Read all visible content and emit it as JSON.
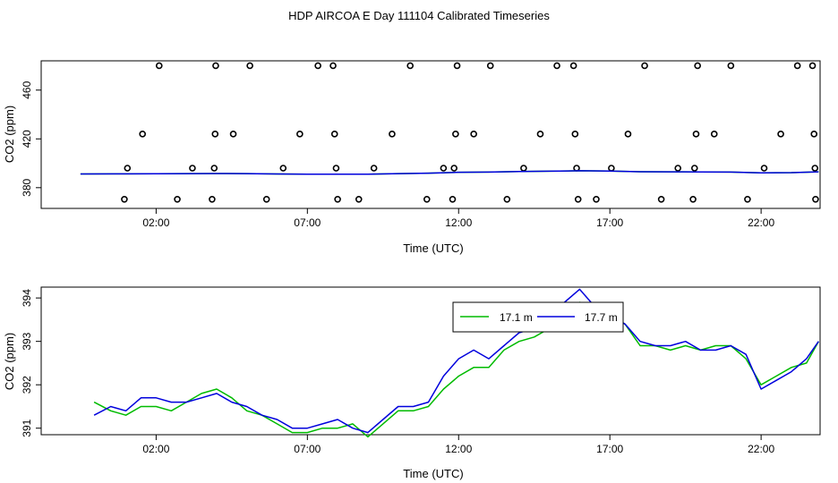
{
  "chart_data": [
    {
      "type": "scatter",
      "title": "HDP AIRCOA E  Day 111104  Calibrated Timeseries",
      "xlabel": "Time (UTC)",
      "ylabel": "CO2 (ppm)",
      "xlim": [
        -1.8,
        23.95
      ],
      "ylim": [
        363,
        484
      ],
      "x_tick_labels": [
        "02:00",
        "07:00",
        "12:00",
        "17:00",
        "22:00"
      ],
      "x_ticks": [
        2,
        7,
        12,
        17,
        22
      ],
      "y_tick_labels": [
        "380",
        "420",
        "460"
      ],
      "y_ticks": [
        380,
        420,
        460
      ],
      "grid": false,
      "series": [
        {
          "marker": "open-circle",
          "color": "#000000",
          "points": [
            [
              0.95,
              370.5
            ],
            [
              1.05,
              396
            ],
            [
              1.55,
              424
            ],
            [
              2.1,
              480
            ],
            [
              2.7,
              370.5
            ],
            [
              3.2,
              396
            ],
            [
              3.85,
              370.5
            ],
            [
              3.92,
              396
            ],
            [
              3.95,
              424
            ],
            [
              3.97,
              480
            ],
            [
              4.55,
              424
            ],
            [
              5.1,
              480
            ],
            [
              5.65,
              370.5
            ],
            [
              6.2,
              396
            ],
            [
              6.75,
              424
            ],
            [
              7.35,
              480
            ],
            [
              7.85,
              480
            ],
            [
              7.9,
              424
            ],
            [
              7.95,
              396
            ],
            [
              8.0,
              370.5
            ],
            [
              8.7,
              370.5
            ],
            [
              9.2,
              396
            ],
            [
              9.8,
              424
            ],
            [
              10.4,
              480
            ],
            [
              10.95,
              370.5
            ],
            [
              11.5,
              396
            ],
            [
              11.8,
              370.5
            ],
            [
              11.85,
              396
            ],
            [
              11.9,
              424
            ],
            [
              11.95,
              480
            ],
            [
              12.5,
              424
            ],
            [
              13.05,
              480
            ],
            [
              13.6,
              370.5
            ],
            [
              14.15,
              396
            ],
            [
              14.7,
              424
            ],
            [
              15.25,
              480
            ],
            [
              15.8,
              480
            ],
            [
              15.85,
              424
            ],
            [
              15.9,
              396
            ],
            [
              15.95,
              370.5
            ],
            [
              16.55,
              370.5
            ],
            [
              17.05,
              396
            ],
            [
              17.6,
              424
            ],
            [
              18.15,
              480
            ],
            [
              18.7,
              370.5
            ],
            [
              19.25,
              396
            ],
            [
              19.75,
              370.5
            ],
            [
              19.8,
              396
            ],
            [
              19.85,
              424
            ],
            [
              19.9,
              480
            ],
            [
              20.45,
              424
            ],
            [
              21.0,
              480
            ],
            [
              21.55,
              370.5
            ],
            [
              22.1,
              396
            ],
            [
              22.65,
              424
            ],
            [
              23.2,
              480
            ],
            [
              23.7,
              480
            ],
            [
              23.75,
              424
            ],
            [
              23.78,
              396
            ],
            [
              23.8,
              370.5
            ]
          ]
        },
        {
          "name": "17.1 m",
          "type": "line",
          "color": "#00bb00",
          "x": [
            -0.5,
            1,
            2,
            3,
            4,
            5,
            6,
            7,
            8,
            9,
            10,
            11,
            12,
            13,
            14,
            15,
            16,
            17,
            18,
            19,
            20,
            21,
            22,
            23,
            23.9
          ],
          "values": [
            391.2,
            391.3,
            391.4,
            391.5,
            391.6,
            391.5,
            391.2,
            391.0,
            391.1,
            391.0,
            391.5,
            391.9,
            392.6,
            392.8,
            393.2,
            393.5,
            393.9,
            393.6,
            393.1,
            393.0,
            392.9,
            392.8,
            392.2,
            392.3,
            393.0
          ]
        },
        {
          "name": "17.7 m",
          "type": "line",
          "color": "#0000dd",
          "x": [
            -0.5,
            1,
            2,
            3,
            4,
            5,
            6,
            7,
            8,
            9,
            10,
            11,
            12,
            13,
            14,
            15,
            16,
            17,
            18,
            19,
            20,
            21,
            22,
            23,
            23.9
          ],
          "values": [
            391.2,
            391.3,
            391.4,
            391.5,
            391.6,
            391.5,
            391.2,
            391.0,
            391.1,
            391.0,
            391.5,
            391.9,
            392.6,
            392.8,
            393.2,
            393.5,
            393.9,
            393.6,
            393.1,
            393.0,
            392.9,
            392.8,
            392.2,
            392.3,
            393.0
          ]
        }
      ]
    },
    {
      "type": "line",
      "title": "",
      "xlabel": "Time (UTC)",
      "ylabel": "CO2 (ppm)",
      "xlim": [
        -1.8,
        23.95
      ],
      "ylim": [
        390.85,
        394.25
      ],
      "x_tick_labels": [
        "02:00",
        "07:00",
        "12:00",
        "17:00",
        "22:00"
      ],
      "x_ticks": [
        2,
        7,
        12,
        17,
        22
      ],
      "y_tick_labels": [
        "391",
        "392",
        "393",
        "394"
      ],
      "y_ticks": [
        391,
        392,
        393,
        394
      ],
      "grid": false,
      "legend": {
        "placement": "top-center",
        "entries": [
          "17.1 m",
          "17.7 m"
        ]
      },
      "series": [
        {
          "name": "17.1 m",
          "color": "#00bb00",
          "x": [
            -0.05,
            0.5,
            1.0,
            1.5,
            2.0,
            2.5,
            3.0,
            3.5,
            4.0,
            4.5,
            5.0,
            5.5,
            6.0,
            6.5,
            7.0,
            7.5,
            8.0,
            8.5,
            9.0,
            9.5,
            10.0,
            10.5,
            11.0,
            11.5,
            12.0,
            12.5,
            13.0,
            13.5,
            14.0,
            14.5,
            15.0,
            15.5,
            16.0,
            16.5,
            17.0,
            17.5,
            18.0,
            18.5,
            19.0,
            19.5,
            20.0,
            20.5,
            21.0,
            21.5,
            22.0,
            22.5,
            23.0,
            23.5,
            23.9
          ],
          "values": [
            391.6,
            391.4,
            391.3,
            391.5,
            391.5,
            391.4,
            391.6,
            391.8,
            391.9,
            391.7,
            391.4,
            391.3,
            391.1,
            390.9,
            390.9,
            391.0,
            391.0,
            391.1,
            390.8,
            391.1,
            391.4,
            391.4,
            391.5,
            391.9,
            392.2,
            392.4,
            392.4,
            392.8,
            393.0,
            393.1,
            393.3,
            393.7,
            393.9,
            393.8,
            393.6,
            393.4,
            392.9,
            392.9,
            392.8,
            392.9,
            392.8,
            392.9,
            392.9,
            392.6,
            392.0,
            392.2,
            392.4,
            392.5,
            393.0
          ]
        },
        {
          "name": "17.7 m",
          "color": "#0000dd",
          "x": [
            -0.05,
            0.5,
            1.0,
            1.5,
            2.0,
            2.5,
            3.0,
            3.5,
            4.0,
            4.5,
            5.0,
            5.5,
            6.0,
            6.5,
            7.0,
            7.5,
            8.0,
            8.5,
            9.0,
            9.5,
            10.0,
            10.5,
            11.0,
            11.5,
            12.0,
            12.5,
            13.0,
            13.5,
            14.0,
            14.5,
            15.0,
            15.5,
            16.0,
            16.5,
            17.0,
            17.5,
            18.0,
            18.5,
            19.0,
            19.5,
            20.0,
            20.5,
            21.0,
            21.5,
            22.0,
            22.5,
            23.0,
            23.5,
            23.9
          ],
          "values": [
            391.3,
            391.5,
            391.4,
            391.7,
            391.7,
            391.6,
            391.6,
            391.7,
            391.8,
            391.6,
            391.5,
            391.3,
            391.2,
            391.0,
            391.0,
            391.1,
            391.2,
            391.0,
            390.9,
            391.2,
            391.5,
            391.5,
            391.6,
            392.2,
            392.6,
            392.8,
            392.6,
            392.9,
            393.2,
            393.3,
            393.4,
            393.9,
            394.2,
            393.8,
            393.6,
            393.4,
            393.0,
            392.9,
            392.9,
            393.0,
            392.8,
            392.8,
            392.9,
            392.7,
            391.9,
            392.1,
            392.3,
            392.6,
            393.0
          ]
        }
      ]
    }
  ]
}
